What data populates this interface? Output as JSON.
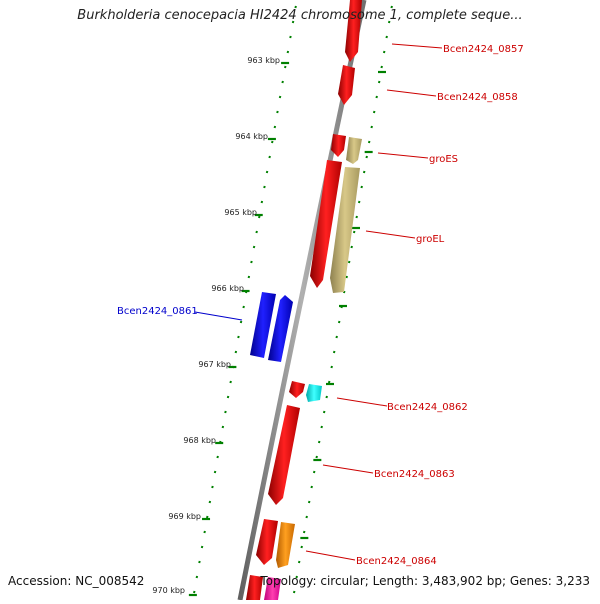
{
  "title": "Burkholderia cenocepacia HI2424 chromosome 1, complete seque...",
  "footer": {
    "accession": "Accession: NC_008542",
    "info": "Topology: circular; Length: 3,483,902 bp; Genes: 3,233"
  },
  "ruler": {
    "ticks": [
      "963 kbp",
      "964 kbp",
      "965 kbp",
      "966 kbp",
      "967 kbp",
      "968 kbp",
      "969 kbp",
      "970 kbp"
    ]
  },
  "genes": [
    {
      "name": "Bcen2424_0857",
      "strand": "reverse",
      "color": "#ff0000"
    },
    {
      "name": "Bcen2424_0858",
      "strand": "reverse",
      "color": "#ff0000"
    },
    {
      "name": "groES",
      "strand": "forward",
      "color": "#c8b878"
    },
    {
      "name": "groEL",
      "strand": "forward",
      "color": "#c8b878"
    },
    {
      "name": "Bcen2424_0861",
      "strand": "reverse",
      "color": "#0000ff"
    },
    {
      "name": "Bcen2424_0862",
      "strand": "forward",
      "color": "#00ffff"
    },
    {
      "name": "Bcen2424_0863",
      "strand": "reverse",
      "color": "#ff0000"
    },
    {
      "name": "Bcen2424_0864",
      "strand": "forward",
      "color": "#ff8c00"
    }
  ],
  "colors": {
    "backbone": "#808080",
    "ruler": "#008000",
    "label_red": "#cc0000",
    "label_blue": "#0000cc"
  }
}
